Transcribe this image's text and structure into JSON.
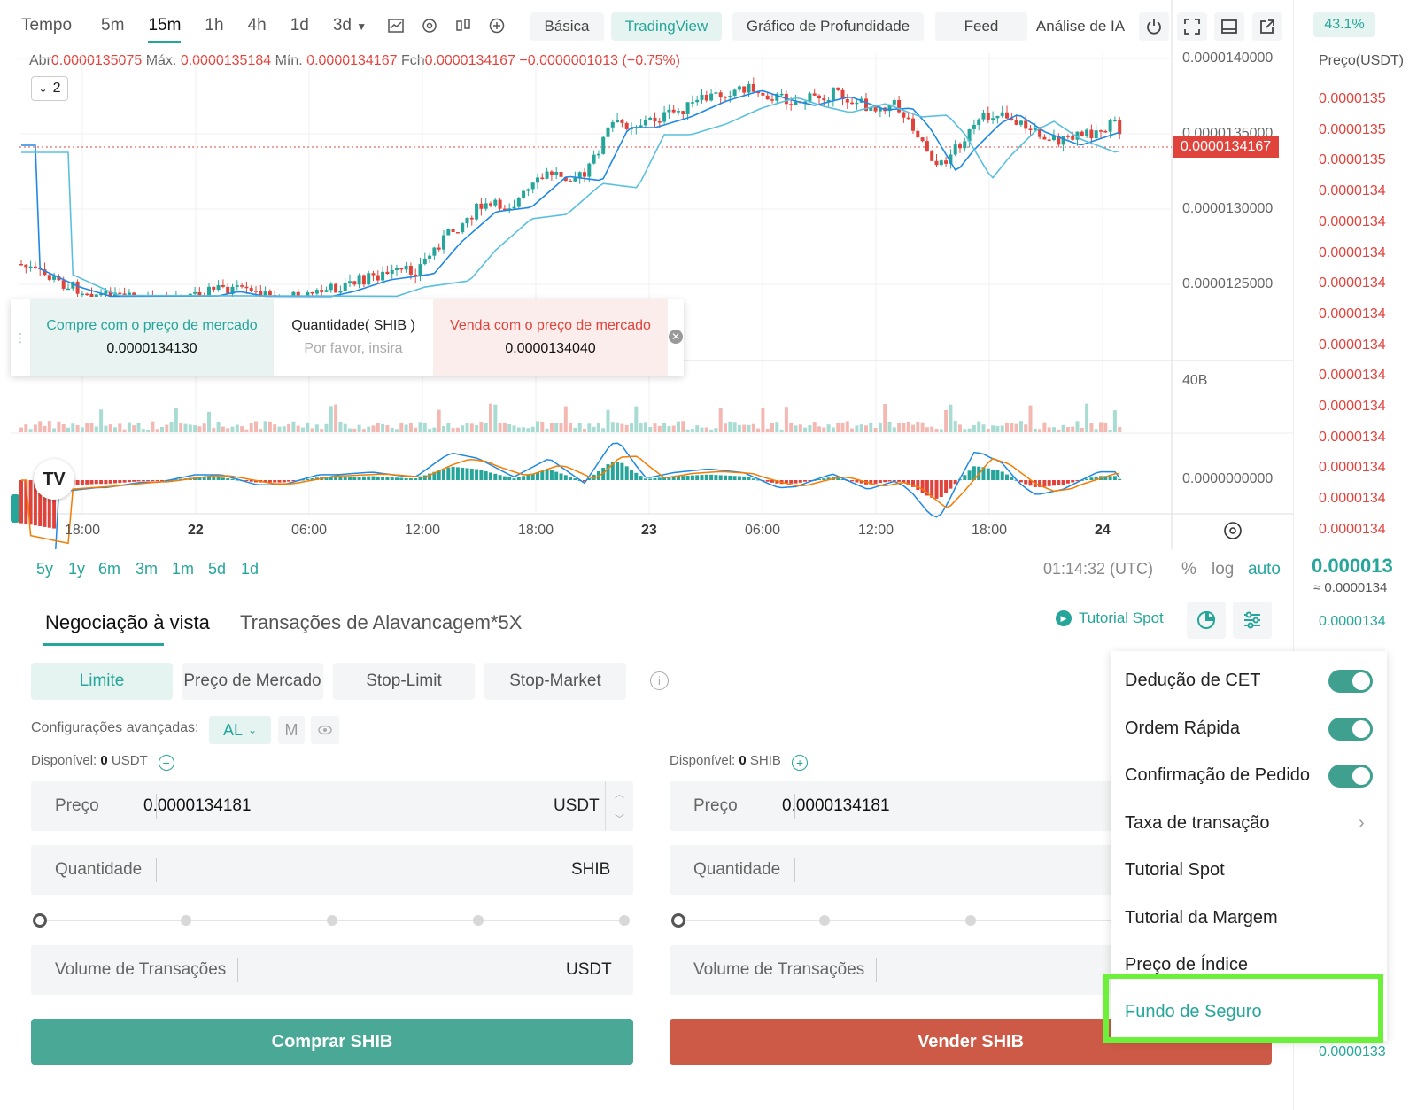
{
  "toolbar": {
    "timeframes": [
      "Tempo",
      "5m",
      "15m",
      "1h",
      "4h",
      "1d",
      "3d"
    ],
    "active_timeframe": "15m",
    "views": [
      "Básica",
      "TradingView",
      "Gráfico de Profundidade",
      "Feed",
      "Análise de IA"
    ],
    "active_view": "TradingView"
  },
  "ohlc": {
    "open_label": "Abr",
    "open": "0.0000135075",
    "high_label": "Máx.",
    "high": "0.0000135184",
    "low_label": "Mín.",
    "low": "0.0000134167",
    "close_label": "Fch",
    "close": "0.0000134167",
    "change": "−0.0000001013 (−0.75%)"
  },
  "indicator_toggle": "2",
  "price_axis": {
    "labels": [
      "0.0000140000",
      "0.0000135000",
      "0.0000130000",
      "0.0000125000"
    ],
    "last_price": "0.0000134167",
    "volume_label": "40B",
    "macd_label": "0.0000000000"
  },
  "time_axis": [
    "18:00",
    "22",
    "06:00",
    "12:00",
    "18:00",
    "23",
    "06:00",
    "12:00",
    "18:00",
    "24"
  ],
  "ranges": [
    "5y",
    "1y",
    "6m",
    "3m",
    "1m",
    "5d",
    "1d"
  ],
  "clock": "01:14:32 (UTC)",
  "scale": {
    "percent": "%",
    "log": "log",
    "auto": "auto"
  },
  "quick_trade": {
    "buy_label": "Compre com o preço de mercado",
    "buy_price": "0.0000134130",
    "qty_label": "Quantidade( SHIB )",
    "qty_placeholder": "Por favor, insira",
    "sell_label": "Venda com o preço de mercado",
    "sell_price": "0.0000134040"
  },
  "orderbook": {
    "percent": "43.1%",
    "header": "Preço(USDT)",
    "asks": [
      "0.0000135",
      "0.0000135",
      "0.0000135",
      "0.0000134",
      "0.0000134",
      "0.0000134",
      "0.0000134",
      "0.0000134",
      "0.0000134",
      "0.0000134",
      "0.0000134",
      "0.0000134",
      "0.0000134",
      "0.0000134",
      "0.0000134"
    ],
    "mid": "0.000013",
    "mid_sub": "≈ 0.0000134",
    "bids": [
      "0.0000134"
    ],
    "bottom_bid": "0.0000133"
  },
  "trade": {
    "tabs": [
      "Negociação à vista",
      "Transações de Alavancagem*5X"
    ],
    "tutorial": "Tutorial Spot",
    "order_types": [
      "Limite",
      "Preço de Mercado",
      "Stop-Limit",
      "Stop-Market"
    ],
    "advanced_label": "Configurações avançadas:",
    "advanced_chip_al": "AL",
    "advanced_chip_m": "M",
    "buy": {
      "available_label": "Disponível:",
      "available_value": "0",
      "available_unit": "USDT",
      "price_label": "Preço",
      "price_value": "0.0000134181",
      "price_unit": "USDT",
      "qty_label": "Quantidade",
      "qty_unit": "SHIB",
      "volume_label": "Volume de Transações",
      "volume_unit": "USDT",
      "button": "Comprar SHIB"
    },
    "sell": {
      "available_label": "Disponível:",
      "available_value": "0",
      "available_unit": "SHIB",
      "price_label": "Preço",
      "price_value": "0.0000134181",
      "qty_label": "Quantidade",
      "volume_label": "Volume de Transações",
      "button": "Vender SHIB"
    }
  },
  "settings_menu": {
    "items": [
      {
        "label": "Dedução de CET",
        "toggle": true
      },
      {
        "label": "Ordem Rápida",
        "toggle": true
      },
      {
        "label": "Confirmação de Pedido",
        "toggle": true
      },
      {
        "label": "Taxa de transação",
        "arrow": true
      },
      {
        "label": "Tutorial Spot"
      },
      {
        "label": "Tutorial da Margem"
      },
      {
        "label": "Preço de Índice"
      },
      {
        "label": "Fundo de Seguro",
        "highlighted": true
      }
    ]
  },
  "colors": {
    "up": "#26a69a",
    "down": "#e0433c",
    "ma_fast": "#1e88e5",
    "ma_slow": "#5bc0de",
    "highlight": "#6cf03a"
  }
}
